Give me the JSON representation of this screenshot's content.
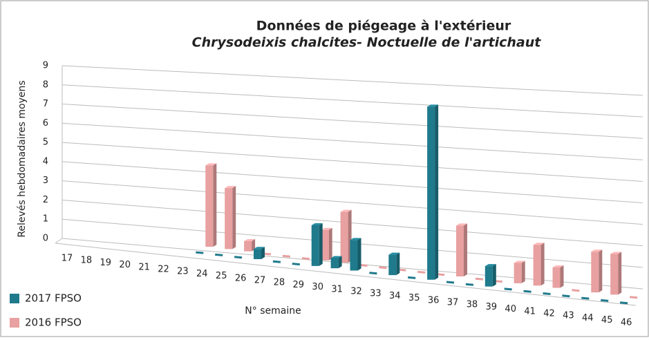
{
  "chart_data": {
    "type": "bar3d",
    "title": "Données de piégeage à l'extérieur",
    "subtitle": "Chrysodeixis chalcites- Noctuelle de l'artichaut",
    "y_label": "Relevés hebdomadaires  moyens",
    "x_label": "N° semaine",
    "categories": [
      "17",
      "18",
      "19",
      "20",
      "21",
      "22",
      "23",
      "24",
      "25",
      "26",
      "27",
      "28",
      "29",
      "30",
      "31",
      "32",
      "33",
      "34",
      "35",
      "36",
      "37",
      "38",
      "39",
      "40",
      "41",
      "42",
      "43",
      "44",
      "45",
      "46"
    ],
    "series": [
      {
        "name": "2017 FPSO",
        "color": "#1f7a8c",
        "values": [
          null,
          null,
          null,
          null,
          null,
          null,
          null,
          0,
          0,
          0,
          0.5,
          0,
          0,
          2,
          0.5,
          1.5,
          0,
          1,
          0,
          8.5,
          0,
          0,
          1,
          0,
          0,
          0,
          0,
          0,
          0,
          0
        ]
      },
      {
        "name": "2016 FPSO",
        "color": "#e8a0a0",
        "values": [
          null,
          null,
          null,
          null,
          null,
          null,
          null,
          4,
          3,
          0.5,
          0,
          0,
          0,
          1.5,
          2.5,
          0,
          0,
          0,
          0,
          0,
          2.5,
          0,
          0,
          1,
          2,
          1,
          0,
          2,
          2,
          0
        ]
      }
    ],
    "ylim": [
      0,
      9
    ],
    "yticks": [
      0,
      1,
      2,
      3,
      4,
      5,
      6,
      7,
      8,
      9
    ],
    "grid": true,
    "legend": "bottom-left"
  }
}
